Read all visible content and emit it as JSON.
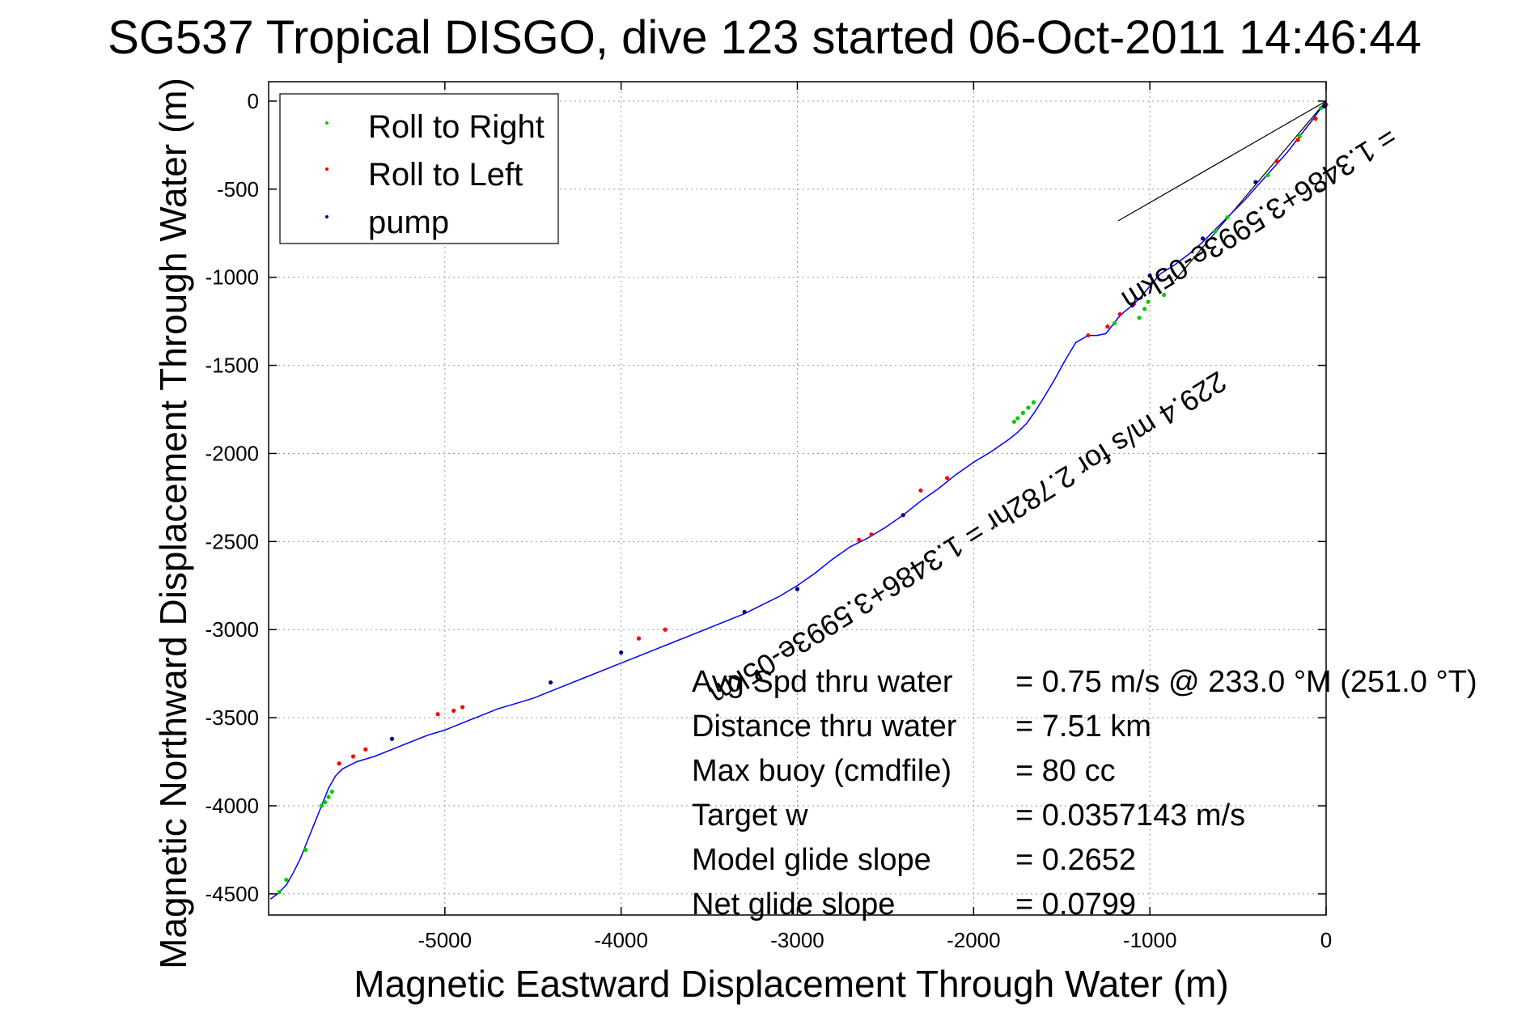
{
  "chart_data": {
    "type": "line",
    "title": "SG537 Tropical DISGO, dive 123 started 06-Oct-2011 14:46:44",
    "xlabel": "Magnetic Eastward Displacement Through Water (m)",
    "ylabel": "Magnetic Northward Displacement Through Water (m)",
    "xlim": [
      -6000,
      0
    ],
    "ylim": [
      -4620,
      110
    ],
    "xticks": [
      -5000,
      -4000,
      -3000,
      -2000,
      -1000,
      0
    ],
    "yticks": [
      0,
      -500,
      -1000,
      -1500,
      -2000,
      -2500,
      -3000,
      -3500,
      -4000,
      -4500
    ],
    "grid": true,
    "legend_position": "top-left",
    "legend": [
      {
        "label": "Roll to Right",
        "color": "#00cc00"
      },
      {
        "label": "Roll to Left",
        "color": "#ff0000"
      },
      {
        "label": "pump",
        "color": "#000080"
      }
    ],
    "track_color": "#0000ff",
    "track": {
      "x": [
        0,
        -30,
        -80,
        -150,
        -220,
        -300,
        -380,
        -460,
        -540,
        -620,
        -700,
        -780,
        -860,
        -940,
        -1000,
        -1050,
        -1100,
        -1150,
        -1180,
        -1210,
        -1250,
        -1300,
        -1350,
        -1420,
        -1480,
        -1540,
        -1600,
        -1650,
        -1700,
        -1750,
        -1800,
        -1900,
        -2000,
        -2100,
        -2200,
        -2300,
        -2400,
        -2500,
        -2600,
        -2700,
        -2800,
        -2900,
        -3000,
        -3100,
        -3200,
        -3300,
        -3400,
        -3500,
        -3600,
        -3700,
        -3800,
        -3900,
        -4000,
        -4100,
        -4200,
        -4300,
        -4400,
        -4500,
        -4600,
        -4700,
        -4800,
        -4900,
        -5000,
        -5100,
        -5200,
        -5300,
        -5400,
        -5500,
        -5580,
        -5620,
        -5660,
        -5700,
        -5740,
        -5780,
        -5820,
        -5860,
        -5900,
        -5950,
        -5990
      ],
      "y": [
        -15,
        -40,
        -110,
        -200,
        -290,
        -380,
        -470,
        -560,
        -640,
        -720,
        -800,
        -870,
        -930,
        -980,
        -1050,
        -1110,
        -1160,
        -1200,
        -1230,
        -1270,
        -1320,
        -1330,
        -1330,
        -1370,
        -1470,
        -1580,
        -1680,
        -1760,
        -1830,
        -1880,
        -1920,
        -1990,
        -2050,
        -2120,
        -2200,
        -2270,
        -2350,
        -2420,
        -2480,
        -2530,
        -2600,
        -2680,
        -2750,
        -2810,
        -2860,
        -2910,
        -2950,
        -2990,
        -3030,
        -3070,
        -3110,
        -3150,
        -3190,
        -3230,
        -3270,
        -3310,
        -3350,
        -3390,
        -3420,
        -3450,
        -3490,
        -3530,
        -3570,
        -3600,
        -3640,
        -3680,
        -3720,
        -3750,
        -3790,
        -3830,
        -3900,
        -4000,
        -4100,
        -4200,
        -4300,
        -4380,
        -4450,
        -4500,
        -4530
      ]
    },
    "roll_right": {
      "x": [
        -30,
        -150,
        -330,
        -560,
        -630,
        -890,
        -920,
        -1010,
        -1030,
        -1060,
        -1200,
        -1660,
        -1690,
        -1720,
        -1750,
        -1770,
        -5640,
        -5660,
        -5680,
        -5700,
        -5790,
        -5900,
        -5940
      ],
      "y": [
        -40,
        -200,
        -420,
        -660,
        -740,
        -1000,
        -1100,
        -1140,
        -1180,
        -1230,
        -1260,
        -1710,
        -1740,
        -1770,
        -1800,
        -1820,
        -3920,
        -3950,
        -3980,
        -4000,
        -4250,
        -4420,
        -4490
      ]
    },
    "roll_left": {
      "x": [
        0,
        -60,
        -160,
        -280,
        -1090,
        -1170,
        -1240,
        -1350,
        -2150,
        -2300,
        -2580,
        -2650,
        -3750,
        -3900,
        -4900,
        -4950,
        -5040,
        -5450,
        -5520,
        -5600
      ],
      "y": [
        -20,
        -100,
        -220,
        -340,
        -1150,
        -1210,
        -1280,
        -1330,
        -2140,
        -2210,
        -2460,
        -2490,
        -3000,
        -3050,
        -3440,
        -3460,
        -3480,
        -3680,
        -3720,
        -3760
      ]
    },
    "pump": {
      "x": [
        -10,
        -400,
        -700,
        -1000,
        -1100,
        -2400,
        -3000,
        -3300,
        -4000,
        -4400,
        -5300
      ],
      "y": [
        -30,
        -460,
        -780,
        -990,
        -1160,
        -2350,
        -2770,
        -2900,
        -3130,
        -3300,
        -3620
      ]
    },
    "heading_wedge": [
      {
        "x": [
          0,
          -1180
        ],
        "y": [
          0,
          -680
        ]
      },
      {
        "x": [
          0,
          -860
        ],
        "y": [
          0,
          -1020
        ]
      }
    ],
    "annotations": {
      "rotated_1": "1.3486+3.5993e-05km",
      "rotated_2": "= 1.3486+3.5993e-05km",
      "rotated_3": "229.4 m/s for 2.782hr",
      "rotated_4": "229.4 m/s for 2.782hr = 1.3486+3.5993e-05km"
    },
    "stats": [
      {
        "label": "Avg Spd thru water",
        "value": "=  0.75 m/s @ 233.0 °M (251.0 °T)"
      },
      {
        "label": "Distance thru water",
        "value": "=  7.51 km"
      },
      {
        "label": "Max buoy (cmdfile)",
        "value": "= 80 cc"
      },
      {
        "label": "Target w",
        "value": "= 0.0357143 m/s"
      },
      {
        "label": "Model glide slope",
        "value": "= 0.2652"
      },
      {
        "label": "Net glide slope",
        "value": "= 0.0799"
      }
    ]
  }
}
